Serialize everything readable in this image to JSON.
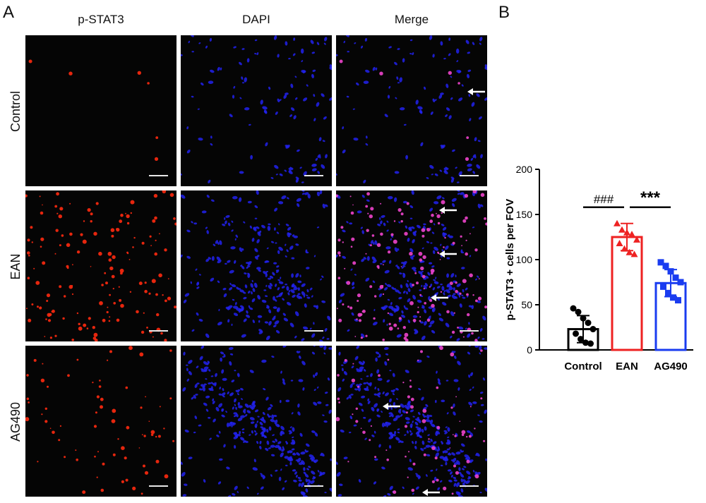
{
  "panel_a": {
    "letter": "A",
    "columns": [
      "p-STAT3",
      "DAPI",
      "Merge"
    ],
    "rows": [
      "Control",
      "EAN",
      "AG490"
    ]
  },
  "panel_b": {
    "letter": "B"
  },
  "colors": {
    "control": "#000000",
    "ean": "#ee2222",
    "ag490": "#1a3cf0",
    "stain_red": "#ff2a10",
    "stain_blue": "#2222ee",
    "stain_magenta": "#ee44cc"
  },
  "chart_data": {
    "type": "bar",
    "categories": [
      "Control",
      "EAN",
      "AG490"
    ],
    "means": [
      23,
      125,
      74
    ],
    "sd": [
      15,
      15,
      15
    ],
    "points": [
      [
        46,
        42,
        35,
        30,
        23,
        18,
        12,
        8,
        7
      ],
      [
        140,
        133,
        130,
        128,
        122,
        118,
        112,
        108,
        106
      ],
      [
        97,
        93,
        87,
        80,
        75,
        70,
        63,
        58,
        55
      ]
    ],
    "ylabel": "p-STAT3 + cells per FOV",
    "ylim": [
      0,
      200
    ],
    "yticks": [
      0,
      50,
      100,
      150,
      200
    ],
    "significance": [
      {
        "label": "###",
        "from": "Control",
        "to": "EAN"
      },
      {
        "label": "***",
        "from": "EAN",
        "to": "AG490"
      }
    ],
    "marker_shapes": [
      "circle",
      "triangle",
      "square"
    ],
    "grid": false
  }
}
